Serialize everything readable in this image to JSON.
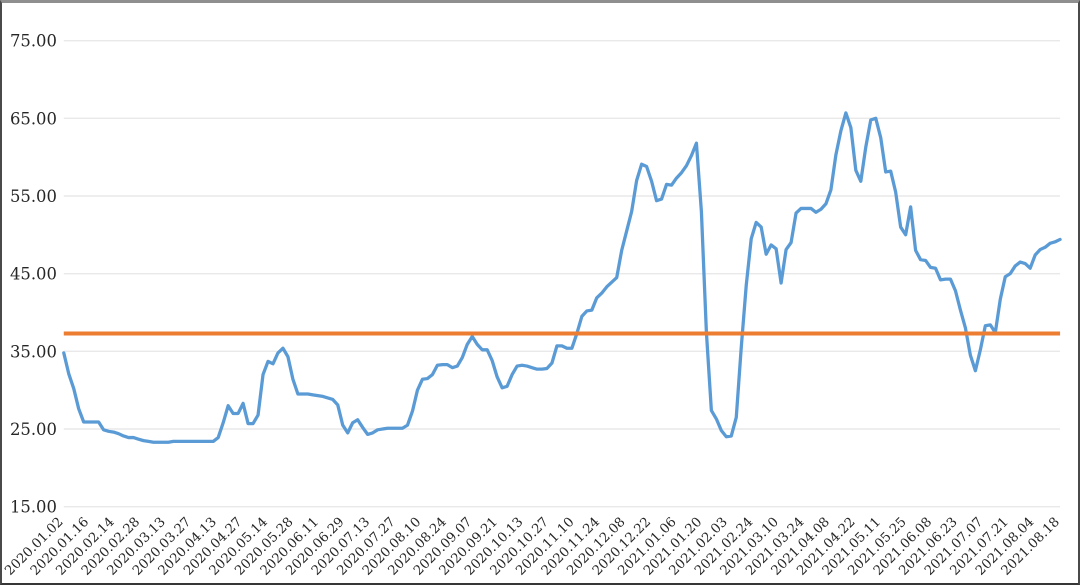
{
  "chart_data": {
    "type": "line",
    "title": "",
    "legend_position": "none",
    "grid": true,
    "ylim": [
      15,
      75
    ],
    "y_ticks": [
      15,
      25,
      35,
      45,
      55,
      65,
      75
    ],
    "y_tick_labels": [
      "15.00",
      "25.00",
      "35.00",
      "45.00",
      "55.00",
      "65.00",
      "75.00"
    ],
    "x_labels": [
      "2020.01.02",
      "2020.01.16",
      "2020.02.14",
      "2020.02.28",
      "2020.03.13",
      "2020.03.27",
      "2020.04.13",
      "2020.04.27",
      "2020.05.14",
      "2020.05.28",
      "2020.06.11",
      "2020.06.29",
      "2020.07.13",
      "2020.07.27",
      "2020.08.10",
      "2020.08.24",
      "2020.09.07",
      "2020.09.21",
      "2020.10.13",
      "2020.10.27",
      "2020.11.10",
      "2020.11.24",
      "2020.12.08",
      "2020.12.22",
      "2021.01.06",
      "2021.01.20",
      "2021.02.03",
      "2021.02.24",
      "2021.03.10",
      "2021.03.24",
      "2021.04.08",
      "2021.04.22",
      "2021.05.11",
      "2021.05.25",
      "2021.06.08",
      "2021.06.23",
      "2021.07.07",
      "2021.07.21",
      "2021.08.04",
      "2021.08.18"
    ],
    "series": [
      {
        "name": "daily-close-line",
        "type": "line",
        "color": "#5B9BD5",
        "values": [
          34.8,
          32.1,
          30.2,
          27.6,
          25.9,
          25.9,
          25.9,
          25.9,
          24.9,
          24.7,
          24.6,
          24.4,
          24.1,
          23.9,
          23.9,
          23.7,
          23.5,
          23.4,
          23.3,
          23.3,
          23.3,
          23.3,
          23.4,
          23.4,
          23.4,
          23.4,
          23.4,
          23.4,
          23.4,
          23.4,
          23.4,
          23.9,
          25.8,
          28.0,
          27.0,
          27.0,
          28.3,
          25.7,
          25.7,
          26.8,
          32.0,
          33.7,
          33.4,
          34.8,
          35.4,
          34.3,
          31.4,
          29.5,
          29.5,
          29.5,
          29.4,
          29.3,
          29.2,
          29.0,
          28.8,
          28.1,
          25.5,
          24.5,
          25.8,
          26.2,
          25.2,
          24.3,
          24.5,
          24.9,
          25.0,
          25.1,
          25.1,
          25.1,
          25.1,
          25.5,
          27.3,
          30.0,
          31.4,
          31.5,
          32.0,
          33.2,
          33.3,
          33.3,
          32.9,
          33.1,
          34.2,
          35.9,
          36.9,
          35.9,
          35.2,
          35.2,
          33.8,
          31.7,
          30.3,
          30.5,
          32.0,
          33.1,
          33.2,
          33.1,
          32.9,
          32.7,
          32.7,
          32.8,
          33.5,
          35.7,
          35.7,
          35.4,
          35.4,
          37.3,
          39.5,
          40.2,
          40.3,
          41.9,
          42.5,
          43.3,
          43.9,
          44.5,
          48.0,
          50.5,
          53.0,
          57.0,
          59.1,
          58.8,
          56.9,
          54.4,
          54.6,
          56.5,
          56.4,
          57.3,
          58.0,
          58.9,
          60.2,
          61.8,
          53.0,
          37.5,
          27.4,
          26.3,
          24.8,
          24.0,
          24.1,
          26.5,
          35.5,
          43.5,
          49.5,
          51.6,
          51.0,
          47.5,
          48.7,
          48.2,
          43.8,
          48.1,
          49.0,
          52.8,
          53.4,
          53.4,
          53.4,
          52.9,
          53.3,
          54.0,
          55.8,
          60.3,
          63.4,
          65.7,
          63.8,
          58.3,
          56.9,
          61.3,
          64.8,
          65.0,
          62.5,
          58.1,
          58.2,
          55.5,
          51.0,
          50.0,
          53.6,
          48.0,
          46.8,
          46.7,
          45.8,
          45.7,
          44.2,
          44.3,
          44.3,
          42.8,
          40.3,
          38.0,
          34.5,
          32.5,
          35.2,
          38.3,
          38.4,
          37.4,
          41.7,
          44.6,
          45.0,
          46.0,
          46.5,
          46.3,
          45.7,
          47.4,
          48.1,
          48.4,
          48.9,
          49.1,
          49.4
        ]
      },
      {
        "name": "horizontal-reference-line",
        "type": "hline",
        "color": "#ED7D31",
        "value": 37.3
      }
    ],
    "colors": {
      "background": "#ffffff",
      "grid": "#e9e9e9",
      "tick_text": "#262626",
      "line_blue": "#5B9BD5",
      "line_orange": "#ED7D31"
    }
  }
}
